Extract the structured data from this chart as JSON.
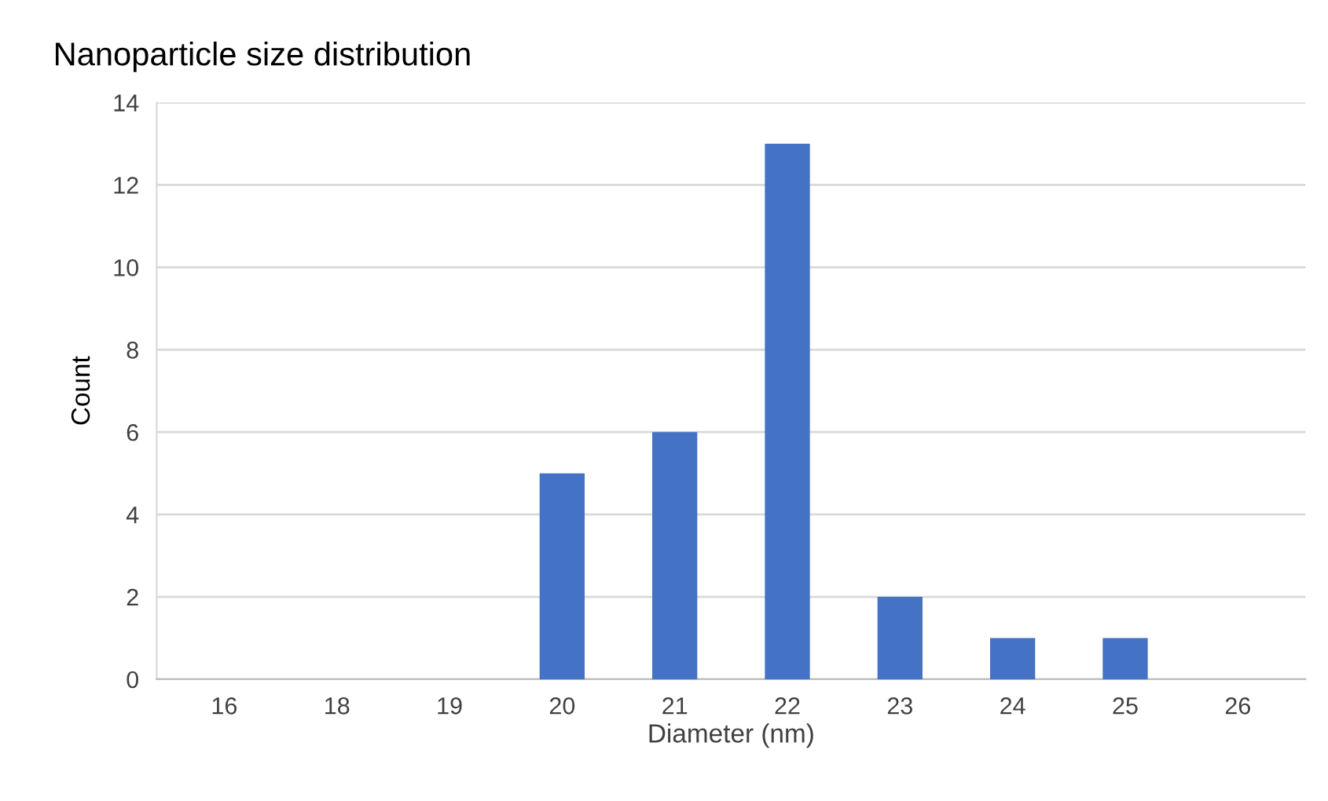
{
  "chart_data": {
    "type": "bar",
    "title": "Nanoparticle size distribution",
    "xlabel": "Diameter (nm)",
    "ylabel": "Count",
    "categories": [
      "16",
      "18",
      "19",
      "20",
      "21",
      "22",
      "23",
      "24",
      "25",
      "26"
    ],
    "values": [
      0,
      0,
      0,
      5,
      6,
      13,
      2,
      1,
      1,
      0
    ],
    "color": "#4472c4",
    "ylim": [
      0,
      14
    ],
    "yticks": [
      0,
      2,
      4,
      6,
      8,
      10,
      12,
      14
    ],
    "grid": "y",
    "legend": false
  }
}
